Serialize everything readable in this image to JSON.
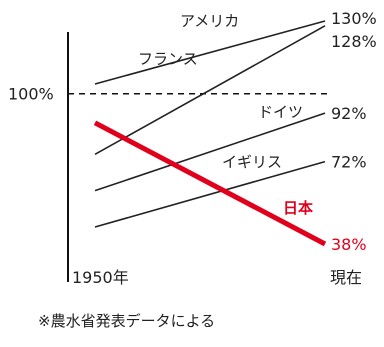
{
  "chart_data": {
    "type": "line",
    "x": [
      "1950年",
      "現在"
    ],
    "reference": {
      "label": "100%",
      "value": 100
    },
    "series": [
      {
        "name": "アメリカ",
        "values": [
          104,
          130
        ],
        "end_label": "130%",
        "color": "#222222"
      },
      {
        "name": "フランス",
        "values": [
          75,
          128
        ],
        "end_label": "128%",
        "color": "#222222"
      },
      {
        "name": "ドイツ",
        "values": [
          60,
          92
        ],
        "end_label": "92%",
        "color": "#222222"
      },
      {
        "name": "イギリス",
        "values": [
          45,
          72
        ],
        "end_label": "72%",
        "color": "#222222"
      },
      {
        "name": "日本",
        "values": [
          88,
          38
        ],
        "end_label": "38%",
        "color": "#e0001b"
      }
    ]
  },
  "note": "※農水省発表データによる"
}
